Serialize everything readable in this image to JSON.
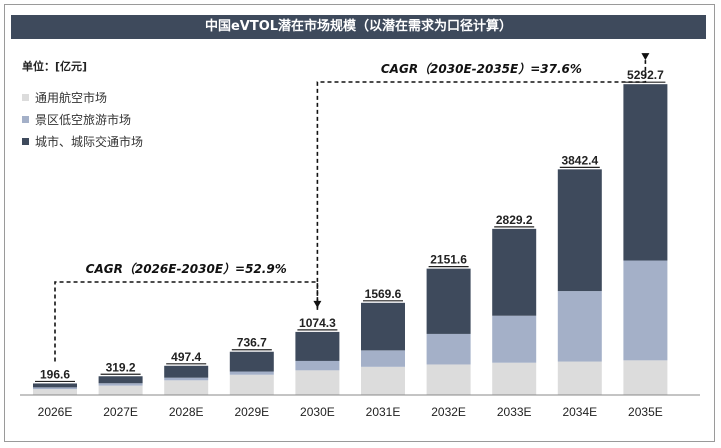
{
  "title": "中国eVTOL潜在市场规模（以潜在需求为口径计算）",
  "unit": "单位：[亿元]",
  "colors": {
    "title_bg": "#3e4a5c",
    "general_aviation": "#dcdcdc",
    "scenic": "#a4b0c8",
    "urban": "#3e4a5c"
  },
  "chart_data": {
    "type": "bar",
    "stacked": true,
    "categories": [
      "2026E",
      "2027E",
      "2028E",
      "2029E",
      "2030E",
      "2031E",
      "2032E",
      "2033E",
      "2034E",
      "2035E"
    ],
    "series": [
      {
        "name": "通用航空市场",
        "color": "#dcdcdc",
        "values": [
          100,
          160,
          250,
          345,
          420,
          480,
          520,
          550,
          570,
          590
        ]
      },
      {
        "name": "景区低空旅游市场",
        "color": "#a4b0c8",
        "values": [
          30,
          40,
          45,
          55,
          160,
          280,
          520,
          800,
          1200,
          1700
        ]
      },
      {
        "name": "城市、城际交通市场",
        "color": "#3e4a5c",
        "values": [
          66.6,
          119.2,
          202.4,
          336.7,
          494.3,
          809.6,
          1111.6,
          1479.2,
          2072.4,
          3002.7
        ]
      }
    ],
    "totals": [
      "196.6",
      "319.2",
      "497.4",
      "736.7",
      "1074.3",
      "1569.6",
      "2151.6",
      "2829.2",
      "3842.4",
      "5292.7"
    ],
    "ylim": [
      0,
      5500
    ],
    "grid": false,
    "legend_position": "top-left",
    "annotations": [
      {
        "text": "CAGR（2026E-2030E）=52.9%",
        "from": "2026E",
        "to": "2030E"
      },
      {
        "text": "CAGR（2030E-2035E）=37.6%",
        "from": "2030E",
        "to": "2035E"
      }
    ]
  }
}
